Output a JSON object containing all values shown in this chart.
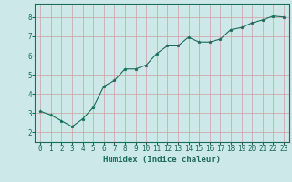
{
  "x": [
    0,
    1,
    2,
    3,
    4,
    5,
    6,
    7,
    8,
    9,
    10,
    11,
    12,
    13,
    14,
    15,
    16,
    17,
    18,
    19,
    20,
    21,
    22,
    23
  ],
  "y": [
    3.1,
    2.9,
    2.6,
    2.3,
    2.7,
    3.3,
    4.4,
    4.7,
    5.3,
    5.3,
    5.5,
    6.1,
    6.5,
    6.5,
    6.95,
    6.7,
    6.7,
    6.85,
    7.35,
    7.45,
    7.7,
    7.85,
    8.05,
    8.0
  ],
  "line_color": "#1a6b5a",
  "marker": "*",
  "marker_size": 2.5,
  "background_color": "#cce8e8",
  "grid_color": "#b8d8d8",
  "xlabel": "Humidex (Indice chaleur)",
  "xlabel_fontsize": 6.5,
  "tick_color": "#1a6b5a",
  "tick_fontsize": 5.5,
  "ylim": [
    1.5,
    8.7
  ],
  "xlim": [
    -0.5,
    23.5
  ],
  "yticks": [
    2,
    3,
    4,
    5,
    6,
    7,
    8
  ],
  "xticks": [
    0,
    1,
    2,
    3,
    4,
    5,
    6,
    7,
    8,
    9,
    10,
    11,
    12,
    13,
    14,
    15,
    16,
    17,
    18,
    19,
    20,
    21,
    22,
    23
  ]
}
